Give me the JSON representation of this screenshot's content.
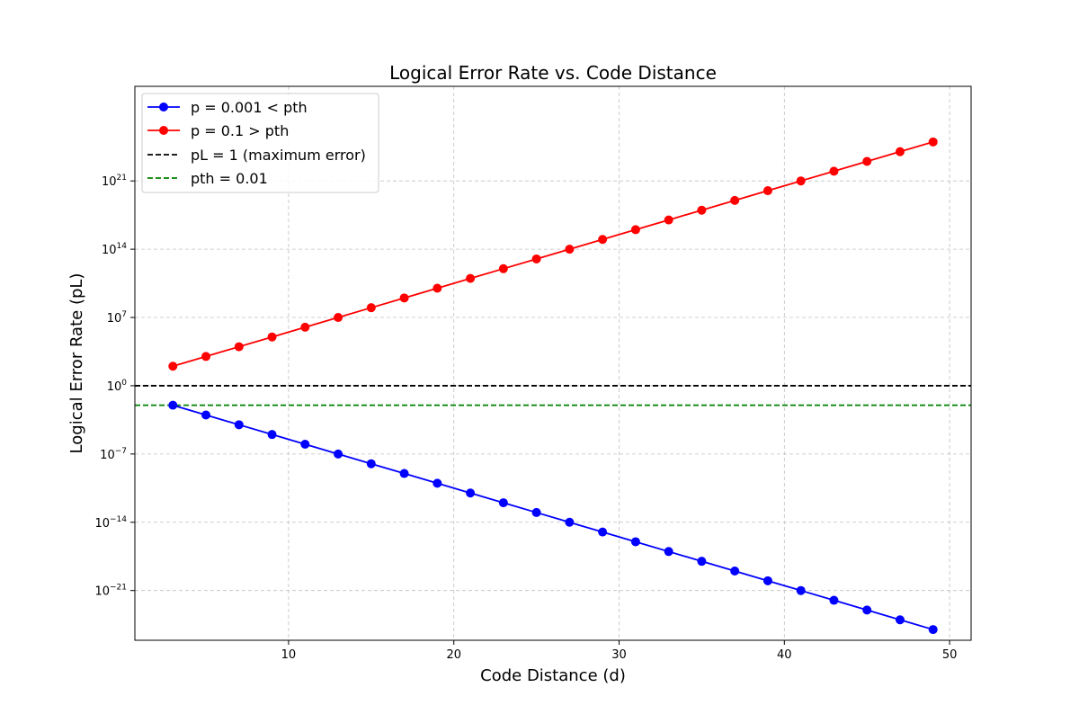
{
  "chart_data": {
    "type": "line",
    "title": "Logical Error Rate vs. Code Distance",
    "xlabel": "Code Distance (d)",
    "ylabel": "Logical Error Rate (pL)",
    "yscale": "log",
    "xlim": [
      0.7,
      51.3
    ],
    "ylim_log10": [
      -26.1,
      30.7
    ],
    "grid": true,
    "legend_position": "upper left",
    "x_ticks": [
      10,
      20,
      30,
      40,
      50
    ],
    "y_ticks": [
      {
        "exp": -21,
        "label": "10",
        "sup": "−21"
      },
      {
        "exp": -14,
        "label": "10",
        "sup": "−14"
      },
      {
        "exp": -7,
        "label": "10",
        "sup": "−7"
      },
      {
        "exp": 0,
        "label": "10",
        "sup": "0"
      },
      {
        "exp": 7,
        "label": "10",
        "sup": "7"
      },
      {
        "exp": 14,
        "label": "10",
        "sup": "14"
      },
      {
        "exp": 21,
        "label": "10",
        "sup": "21"
      }
    ],
    "x": [
      3,
      5,
      7,
      9,
      11,
      13,
      15,
      17,
      19,
      21,
      23,
      25,
      27,
      29,
      31,
      33,
      35,
      37,
      39,
      41,
      43,
      45,
      47,
      49
    ],
    "series": [
      {
        "name": "p = 0.001 < pth",
        "color": "#0000ff",
        "marker": "circle",
        "values_log10": [
          -2,
          -3,
          -4,
          -5,
          -6,
          -7,
          -8,
          -9,
          -10,
          -11,
          -12,
          -13,
          -14,
          -15,
          -16,
          -17,
          -18,
          -19,
          -20,
          -21,
          -22,
          -23,
          -24,
          -25
        ]
      },
      {
        "name": "p = 0.1 > pth",
        "color": "#ff0000",
        "marker": "circle",
        "values_log10": [
          2,
          3,
          4,
          5,
          6,
          7,
          8,
          9,
          10,
          11,
          12,
          13,
          14,
          15,
          16,
          17,
          18,
          19,
          20,
          21,
          22,
          23,
          24,
          25
        ]
      }
    ],
    "reference_lines": [
      {
        "name": "pL = 1 (maximum error)",
        "value_log10": 0,
        "color": "#000000",
        "style": "dashed"
      },
      {
        "name": "pth = 0.01",
        "value_log10": -2,
        "color": "#008000",
        "style": "dashed"
      }
    ]
  }
}
